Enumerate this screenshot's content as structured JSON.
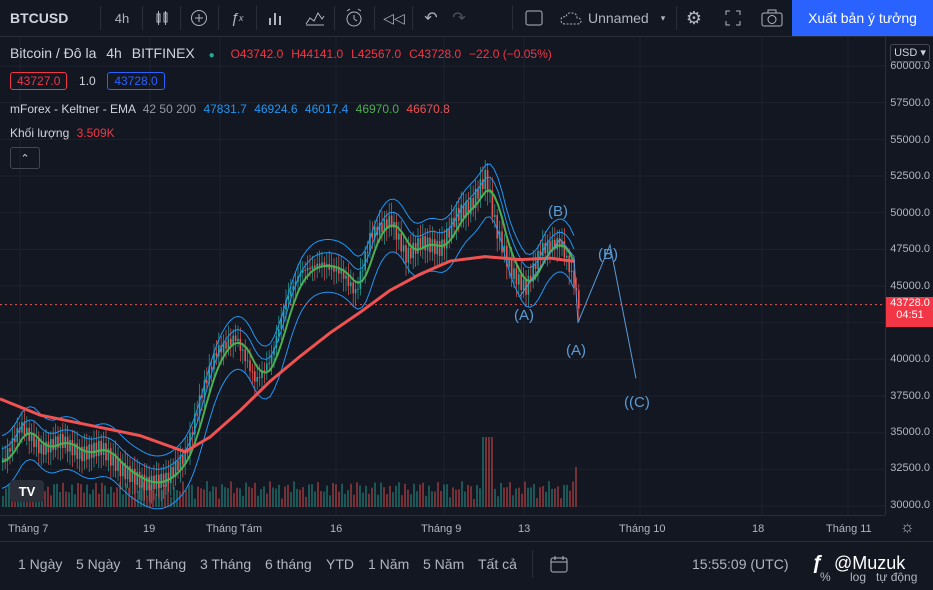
{
  "toolbar": {
    "symbol": "BTCUSD",
    "interval": "4h",
    "layout_name": "Unnamed",
    "publish_label": "Xuất bản ý tưởng"
  },
  "legend": {
    "title": "Bitcoin / Đô la",
    "interval": "4h",
    "exchange": "BITFINEX",
    "ohlc": {
      "o": "O43742.0",
      "h": "H44141.0",
      "l": "L42567.0",
      "c": "C43728.0",
      "chg": "−22.0 (−0.05%)"
    },
    "bid": "43727.0",
    "spread": "1.0",
    "ask": "43728.0",
    "keltner_name": "mForex - Keltner - EMA",
    "keltner_params": "42 50 200",
    "keltner_values": [
      "47831.7",
      "46924.6",
      "46017.4",
      "46970.0",
      "46670.8"
    ],
    "volume_label": "Khối lượng",
    "volume_value": "3.509K"
  },
  "price_scale": {
    "currency": "USD",
    "labels": [
      "60000.0",
      "57500.0",
      "55000.0",
      "52500.0",
      "50000.0",
      "47500.0",
      "45000.0",
      "42500.0",
      "40000.0",
      "37500.0",
      "35000.0",
      "32500.0",
      "30000.0"
    ],
    "current_price": "43728.0",
    "countdown": "04:51"
  },
  "time_scale": {
    "labels": [
      "Tháng 7",
      "19",
      "Tháng Tám",
      "16",
      "Tháng 9",
      "13",
      "Tháng 10",
      "18",
      "Tháng 11"
    ]
  },
  "wave_labels": [
    "(B)",
    "(B)",
    "(A)",
    "(A)",
    "((C)"
  ],
  "bottom": {
    "ranges": [
      "1 Ngày",
      "5 Ngày",
      "1 Tháng",
      "3 Tháng",
      "6 tháng",
      "YTD",
      "1 Năm",
      "5 Năm",
      "Tất cả"
    ],
    "clock": "15:55:09 (UTC)",
    "watermark": "@Muzuk",
    "log_label": "log",
    "auto_label": "tự động"
  },
  "colors": {
    "up": "#26a69a",
    "down": "#ef5350",
    "ema200": "#f05252",
    "keltner": "#2196f3",
    "mid": "#4caf50",
    "accent": "#2962ff",
    "wave": "#5b9bd5"
  },
  "chart_data": {
    "type": "line",
    "price_range": [
      30000,
      60000
    ],
    "price_trend": {
      "x": [
        "Tháng 7",
        "19",
        "Tháng Tám",
        "16",
        "Tháng 9",
        "13"
      ],
      "close": [
        33500,
        31500,
        39500,
        46000,
        49500,
        43728
      ]
    },
    "ema200": {
      "x": [
        "Tháng 7",
        "19",
        "Tháng Tám",
        "16",
        "Tháng 9",
        "13"
      ],
      "values": [
        37500,
        34000,
        38500,
        43000,
        46500,
        46670.8
      ]
    }
  }
}
